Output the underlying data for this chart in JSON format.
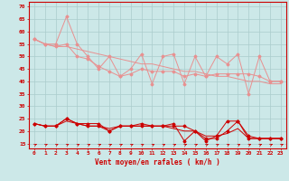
{
  "x": [
    0,
    1,
    2,
    3,
    4,
    5,
    6,
    7,
    8,
    9,
    10,
    11,
    12,
    13,
    14,
    15,
    16,
    17,
    18,
    19,
    20,
    21,
    22,
    23
  ],
  "line1": [
    57,
    55,
    55,
    66,
    55,
    50,
    45,
    50,
    42,
    45,
    51,
    39,
    50,
    51,
    39,
    50,
    42,
    50,
    47,
    51,
    35,
    50,
    40,
    40
  ],
  "line2": [
    57,
    55,
    54,
    55,
    50,
    49,
    46,
    44,
    42,
    43,
    45,
    44,
    44,
    44,
    42,
    43,
    42,
    43,
    43,
    43,
    43,
    42,
    40,
    40
  ],
  "line3": [
    57,
    55,
    54,
    54,
    53,
    52,
    51,
    50,
    49,
    48,
    47,
    47,
    46,
    45,
    44,
    44,
    43,
    42,
    42,
    41,
    40,
    40,
    39,
    39
  ],
  "line4": [
    23,
    22,
    22,
    25,
    23,
    23,
    23,
    20,
    22,
    22,
    23,
    22,
    22,
    23,
    16,
    20,
    16,
    18,
    24,
    24,
    18,
    17,
    17,
    17
  ],
  "line5": [
    23,
    22,
    22,
    25,
    23,
    22,
    22,
    20,
    22,
    22,
    22,
    22,
    22,
    22,
    22,
    20,
    17,
    17,
    20,
    24,
    17,
    17,
    17,
    17
  ],
  "line6": [
    23,
    22,
    22,
    24,
    23,
    22,
    22,
    21,
    22,
    22,
    22,
    22,
    22,
    21,
    20,
    20,
    18,
    18,
    19,
    21,
    17,
    17,
    17,
    17
  ],
  "bg_color": "#cce8e8",
  "grid_color": "#aacccc",
  "line_color_light": "#e89090",
  "line_color_dark": "#cc0000",
  "xlabel": "Vent moyen/en rafales ( km/h )",
  "ylim": [
    13,
    72
  ],
  "yticks": [
    15,
    20,
    25,
    30,
    35,
    40,
    45,
    50,
    55,
    60,
    65,
    70
  ],
  "xticks": [
    0,
    1,
    2,
    3,
    4,
    5,
    6,
    7,
    8,
    9,
    10,
    11,
    12,
    13,
    14,
    15,
    16,
    17,
    18,
    19,
    20,
    21,
    22,
    23
  ]
}
